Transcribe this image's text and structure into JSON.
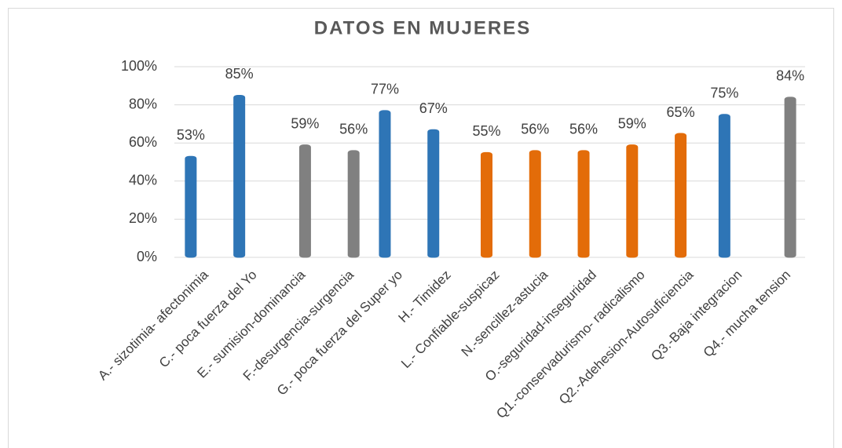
{
  "chart_data": {
    "type": "bar",
    "title": "DATOS EN MUJERES",
    "categories": [
      "A.- sizotimia- afectonimia",
      "C.- poca fuerza del Yo",
      "E.- sumision-dominancia",
      "F.-desurgencia-surgencia",
      "G.- poca fuerza del Super yo",
      "H.- Timidez",
      "L.- Confiable-suspicaz",
      "N.-sencillez-astucia",
      "O.-seguridad-inseguridad",
      "Q1.-conservadurismo- radicalismo",
      "Q2.-Adehesion-Autosuficiencia",
      "Q3.-Baja integracion",
      "Q4.- mucha tension"
    ],
    "series": [
      {
        "color": "#2e75b6",
        "values": [
          53,
          85,
          null,
          null,
          77,
          67,
          null,
          null,
          null,
          null,
          null,
          75,
          null
        ],
        "value_labels": [
          "53%",
          "85%",
          null,
          null,
          "77%",
          "67%",
          null,
          null,
          null,
          null,
          null,
          "75%",
          null
        ]
      },
      {
        "color": "#e36c09",
        "values": [
          null,
          null,
          null,
          null,
          null,
          null,
          55,
          56,
          56,
          59,
          65,
          null,
          null
        ],
        "value_labels": [
          null,
          null,
          null,
          null,
          null,
          null,
          "55%",
          "56%",
          "56%",
          "59%",
          "65%",
          null,
          null
        ]
      },
      {
        "color": "#808080",
        "values": [
          null,
          null,
          59,
          56,
          null,
          null,
          null,
          null,
          null,
          null,
          null,
          null,
          84
        ],
        "value_labels": [
          null,
          null,
          "59%",
          "56%",
          null,
          null,
          null,
          null,
          null,
          null,
          null,
          null,
          "84%"
        ]
      }
    ],
    "ylim": [
      0,
      100
    ],
    "yticks": [
      {
        "value": 0,
        "label": "0%"
      },
      {
        "value": 20,
        "label": "20%"
      },
      {
        "value": 40,
        "label": "40%"
      },
      {
        "value": 60,
        "label": "60%"
      },
      {
        "value": 80,
        "label": "80%"
      },
      {
        "value": 100,
        "label": "100%"
      }
    ],
    "grid": true
  }
}
